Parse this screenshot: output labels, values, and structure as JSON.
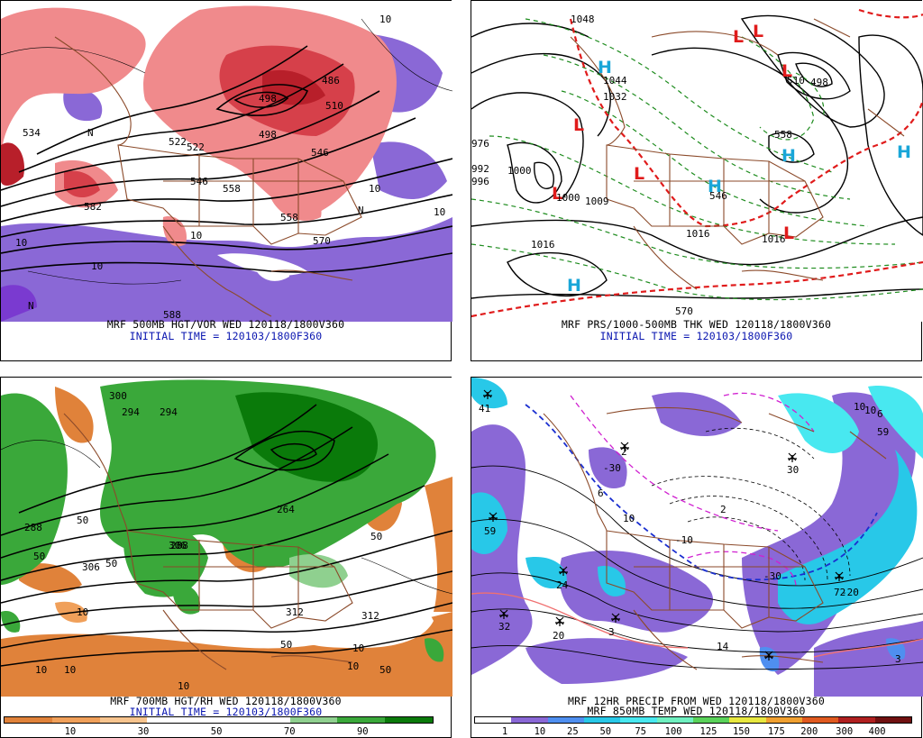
{
  "panels": [
    {
      "id": "p1",
      "caption": "MRF 500MB HGT/VOR WED 120118/1800V360",
      "subcaption": "INITIAL TIME = 120103/1800F360",
      "labels": [
        "10",
        "N",
        "534",
        "522",
        "498",
        "498",
        "486",
        "510",
        "546",
        "546",
        "558",
        "570",
        "582",
        "588",
        "10",
        "10",
        "N",
        "N",
        "10",
        "10",
        "10",
        "522",
        "558"
      ],
      "colors": {
        "vort_pos": "#e8555a",
        "vort_pos_dark": "#b81f2a",
        "vort_neg": "#8a68d6",
        "contour": "#000000",
        "boundary": "#8b4a2a"
      }
    },
    {
      "id": "p2",
      "caption": "MRF PRS/1000-500MB THK WED 120118/1800V360",
      "subcaption": "INITIAL TIME = 120103/1800F360",
      "pressure_labels": [
        "1048",
        "1044",
        "1032",
        "1000",
        "1009",
        "1016",
        "1016",
        "1016",
        "1000",
        "976",
        "992",
        "996"
      ],
      "thickness_labels": [
        "570",
        "546",
        "558",
        "510",
        "498"
      ],
      "centers": [
        {
          "type": "H"
        },
        {
          "type": "L"
        },
        {
          "type": "L"
        },
        {
          "type": "L"
        },
        {
          "type": "L"
        },
        {
          "type": "L"
        },
        {
          "type": "L"
        },
        {
          "type": "H"
        },
        {
          "type": "H"
        },
        {
          "type": "H"
        },
        {
          "type": "H"
        },
        {
          "type": "L"
        }
      ],
      "colors": {
        "isobar": "#000000",
        "thickness": "#1e8c1e",
        "thickness_540": "#e01b1b",
        "low": "#e01b1b",
        "high": "#19a6d8"
      }
    },
    {
      "id": "p3",
      "caption": "MRF 700MB HGT/RH WED 120118/1800V360",
      "subcaption": "INITIAL TIME = 120103/1800F360",
      "labels": [
        "300",
        "294",
        "294",
        "288",
        "288",
        "50",
        "50",
        "50",
        "10",
        "10",
        "10",
        "50",
        "50",
        "50",
        "10",
        "10",
        "312",
        "312",
        "306",
        "306",
        "264",
        "10"
      ],
      "colorbar": {
        "colors": [
          "#e0823a",
          "#f0a05a",
          "#f7c48e",
          "#ffffff",
          "#ffffff",
          "#ffffff",
          "#8fd08f",
          "#3aa83a",
          "#0a7a0a"
        ],
        "labels": [
          "10",
          "30",
          "50",
          "70",
          "90"
        ]
      }
    },
    {
      "id": "p4",
      "caption": "MRF 12HR PRECIP FROM WED 120118/1800V360",
      "subcaption": "MRF 850MB TEMP WED 120118/1800V360",
      "labels": [
        "41",
        "10",
        "59",
        "59",
        "24",
        "32",
        "20",
        "3",
        "10",
        "6",
        "2",
        "30",
        "14",
        "2",
        "6",
        "3",
        "-30",
        "-10",
        "-30",
        "-20",
        "10",
        "72"
      ],
      "colorbar": {
        "colors": [
          "#ffffff",
          "#8a68d6",
          "#4f8ff0",
          "#28c8e8",
          "#48e8f0",
          "#6ff0c0",
          "#5ad25a",
          "#e8e840",
          "#f0a030",
          "#e05a20",
          "#b02020",
          "#701010"
        ],
        "labels": [
          "1",
          "10",
          "25",
          "50",
          "75",
          "100",
          "125",
          "150",
          "175",
          "200",
          "300",
          "400"
        ]
      }
    }
  ]
}
